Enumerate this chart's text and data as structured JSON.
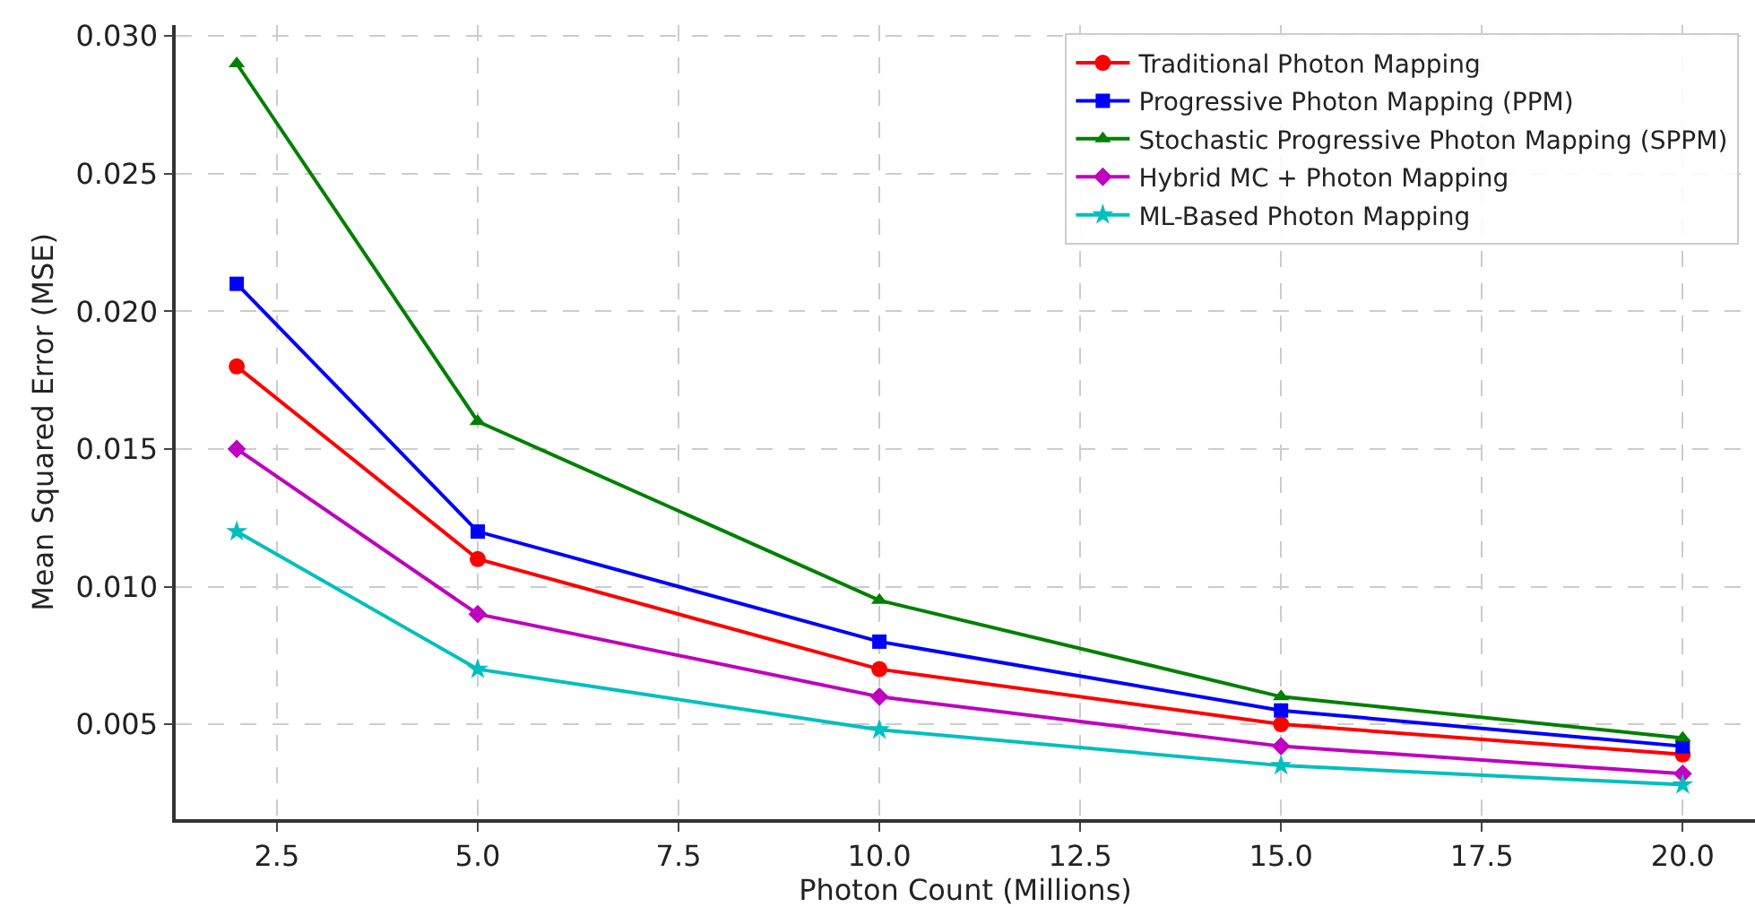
{
  "chart_data": {
    "type": "line",
    "xlabel": "Photon Count (Millions)",
    "ylabel": "Mean Squared Error (MSE)",
    "x": [
      2,
      5,
      10,
      15,
      20
    ],
    "xlim": [
      1.24,
      20.9
    ],
    "xticks": [
      2.5,
      {
        "value": 5,
        "label": "5.0"
      },
      7.5,
      {
        "value": 10,
        "label": "10.0"
      },
      12.5,
      {
        "value": 15,
        "label": "15.0"
      },
      17.5,
      {
        "value": 20,
        "label": "20.0"
      }
    ],
    "ylim": [
      0.00155,
      0.0304
    ],
    "yticks": [
      0.005,
      {
        "value": 0.01,
        "label": "0.010"
      },
      0.015,
      {
        "value": 0.02,
        "label": "0.020"
      },
      0.025,
      {
        "value": 0.03,
        "label": "0.030"
      }
    ],
    "grid": true,
    "legend": "top right",
    "line_style": "solid",
    "series": [
      {
        "name": "Traditional Photon Mapping",
        "color": "#ff0000",
        "marker": "circle",
        "values": [
          0.018,
          0.011,
          0.007,
          0.005,
          0.0039
        ]
      },
      {
        "name": "Progressive Photon Mapping (PPM)",
        "color": "#0000ff",
        "marker": "square",
        "values": [
          0.021,
          0.012,
          0.008,
          0.0055,
          0.0042
        ]
      },
      {
        "name": "Stochastic Progressive Photon Mapping (SPPM)",
        "color": "#008000",
        "marker": "triangle",
        "values": [
          0.029,
          0.016,
          0.0095,
          0.006,
          0.0045
        ]
      },
      {
        "name": "Hybrid MC + Photon Mapping",
        "color": "#bf00bf",
        "marker": "diamond",
        "values": [
          0.015,
          0.009,
          0.006,
          0.0042,
          0.0032
        ]
      },
      {
        "name": "ML-Based Photon Mapping",
        "color": "#00bfbf",
        "marker": "star",
        "values": [
          0.012,
          0.007,
          0.0048,
          0.0035,
          0.0028
        ]
      }
    ]
  }
}
